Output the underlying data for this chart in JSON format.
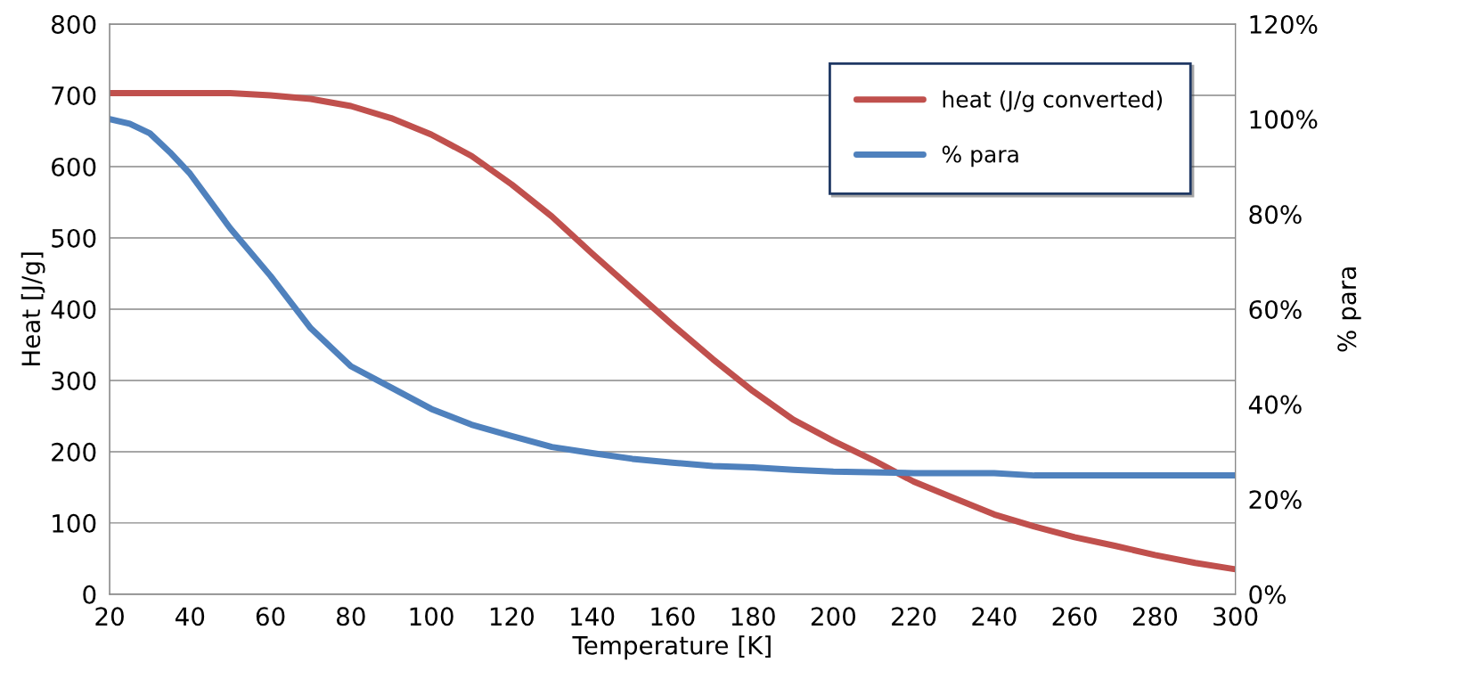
{
  "chart_data": {
    "type": "line",
    "xlabel": "Temperature [K]",
    "ylabel": "Heat [J/g]",
    "y2label": "% para",
    "xlim": [
      20,
      300
    ],
    "xticks": [
      20,
      40,
      60,
      80,
      100,
      120,
      140,
      160,
      180,
      200,
      220,
      240,
      260,
      280,
      300
    ],
    "ylim": [
      0,
      800
    ],
    "yticks": [
      0,
      100,
      200,
      300,
      400,
      500,
      600,
      700,
      800
    ],
    "y2lim": [
      0,
      120
    ],
    "y2ticks": [
      {
        "value": 0,
        "label": "0%"
      },
      {
        "value": 20,
        "label": "20%"
      },
      {
        "value": 40,
        "label": "40%"
      },
      {
        "value": 60,
        "label": "60%"
      },
      {
        "value": 80,
        "label": "80%"
      },
      {
        "value": 100,
        "label": "100%"
      },
      {
        "value": 120,
        "label": "120%"
      }
    ],
    "grid": "y",
    "legend": "top right",
    "marker": "none",
    "line_style": "solid",
    "series": [
      {
        "name": "heat (J/g converted)",
        "color": "#c0504d",
        "x": [
          20,
          30,
          40,
          50,
          60,
          70,
          80,
          90,
          100,
          110,
          120,
          130,
          140,
          150,
          160,
          170,
          180,
          190,
          200,
          210,
          220,
          230,
          240,
          250,
          260,
          270,
          280,
          290,
          300
        ],
        "values": [
          703,
          703,
          703,
          703,
          700,
          695,
          685,
          668,
          645,
          615,
          575,
          530,
          478,
          428,
          378,
          330,
          285,
          245,
          215,
          188,
          158,
          135,
          112,
          95,
          80,
          68,
          55,
          44,
          35
        ]
      },
      {
        "name": "% para",
        "color": "#4f81bd",
        "axis": "y2",
        "x": [
          20,
          25,
          30,
          35,
          40,
          50,
          60,
          70,
          80,
          90,
          100,
          110,
          120,
          130,
          140,
          150,
          160,
          170,
          180,
          190,
          200,
          220,
          240,
          250,
          300
        ],
        "values": [
          100,
          99,
          97,
          93,
          88.5,
          77,
          67,
          56,
          48,
          43.5,
          39,
          35.7,
          33.3,
          31,
          29.7,
          28.5,
          27.7,
          27,
          26.7,
          26.2,
          25.8,
          25.5,
          25.5,
          25,
          25
        ]
      }
    ]
  }
}
